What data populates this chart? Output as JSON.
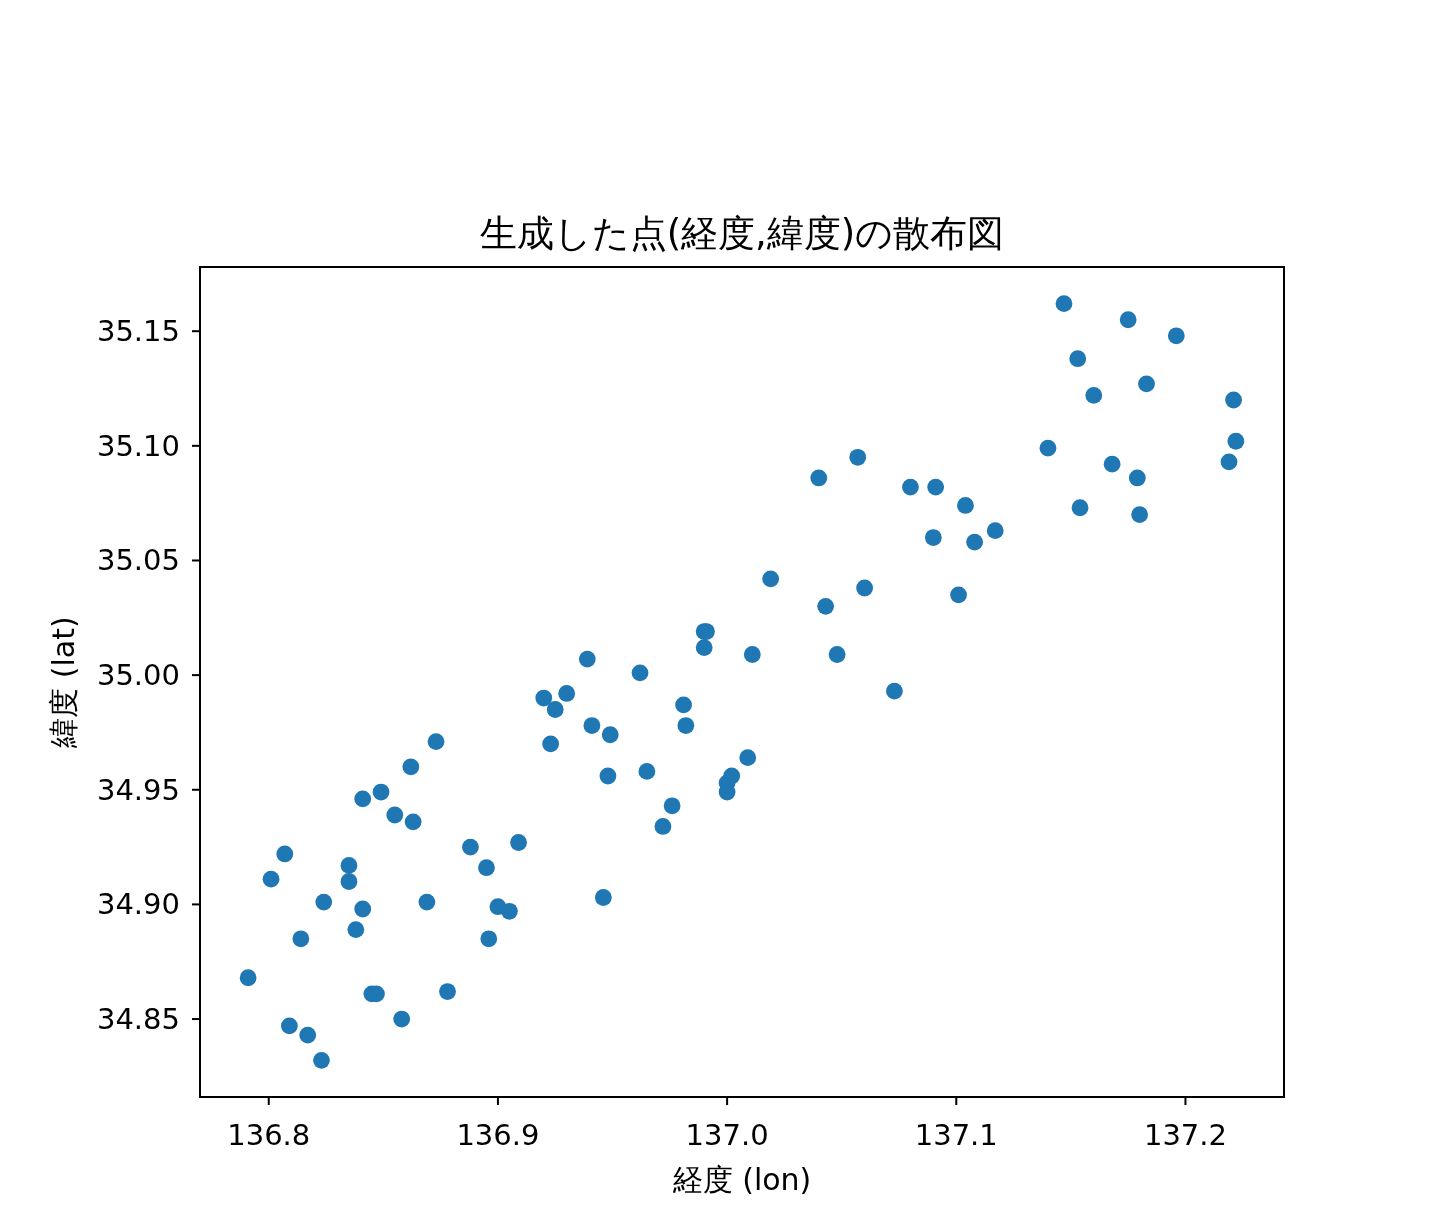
{
  "chart_data": {
    "type": "scatter",
    "title": "生成した点(経度,緯度)の散布図",
    "xlabel": "経度 (lon)",
    "ylabel": "緯度 (lat)",
    "color": "#1f77b4",
    "marker": "circle",
    "x": [
      137.147,
      137.175,
      137.196,
      137.153,
      137.183,
      137.16,
      137.221,
      137.222,
      137.219,
      137.14,
      137.057,
      137.04,
      137.168,
      137.179,
      137.08,
      137.091,
      137.104,
      137.154,
      137.18,
      137.09,
      137.108,
      137.117,
      137.019,
      137.06,
      137.043,
      137.101,
      137.011,
      137.048,
      137.073,
      137.009,
      137.002,
      137.0,
      137.0,
      136.939,
      136.962,
      136.99,
      136.991,
      136.99,
      136.92,
      136.93,
      136.925,
      136.941,
      136.949,
      136.923,
      136.981,
      136.982,
      136.965,
      136.948,
      136.976,
      136.972,
      136.873,
      136.862,
      136.849,
      136.841,
      136.855,
      136.863,
      136.888,
      136.909,
      136.895,
      136.807,
      136.801,
      136.835,
      136.835,
      136.824,
      136.841,
      136.869,
      136.9,
      136.905,
      136.838,
      136.814,
      136.896,
      136.946,
      136.791,
      136.845,
      136.847,
      136.878,
      136.858,
      136.809,
      136.817,
      136.823
    ],
    "values": [
      35.162,
      35.155,
      35.148,
      35.138,
      35.127,
      35.122,
      35.12,
      35.102,
      35.093,
      35.099,
      35.095,
      35.086,
      35.092,
      35.086,
      35.082,
      35.082,
      35.074,
      35.073,
      35.07,
      35.06,
      35.058,
      35.063,
      35.042,
      35.038,
      35.03,
      35.035,
      35.009,
      35.009,
      34.993,
      34.964,
      34.956,
      34.953,
      34.949,
      35.007,
      35.001,
      35.019,
      35.019,
      35.012,
      34.99,
      34.992,
      34.985,
      34.978,
      34.974,
      34.97,
      34.987,
      34.978,
      34.958,
      34.956,
      34.943,
      34.934,
      34.971,
      34.96,
      34.949,
      34.946,
      34.939,
      34.936,
      34.925,
      34.927,
      34.916,
      34.922,
      34.911,
      34.917,
      34.91,
      34.901,
      34.898,
      34.901,
      34.899,
      34.897,
      34.889,
      34.885,
      34.885,
      34.903,
      34.868,
      34.861,
      34.861,
      34.862,
      34.85,
      34.847,
      34.843,
      34.832
    ],
    "xlim": [
      136.77,
      137.243
    ],
    "ylim": [
      34.816,
      35.178
    ],
    "xticks": [
      136.8,
      136.9,
      {
        "value": 137.0,
        "label": "137.0"
      },
      137.1,
      137.2
    ],
    "yticks": [
      34.85,
      {
        "value": 34.9,
        "label": "34.90"
      },
      34.95,
      {
        "value": 35.0,
        "label": "35.00"
      },
      35.05,
      {
        "value": 35.1,
        "label": "35.10"
      },
      35.15
    ]
  }
}
